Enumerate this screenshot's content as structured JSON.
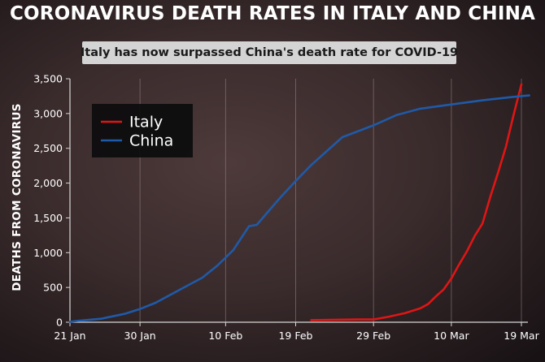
{
  "chart_data": {
    "type": "line",
    "title": "CORONAVIRUS DEATH RATES IN ITALY AND CHINA",
    "subtitle": "Italy has now surpassed China's death rate for COVID-19",
    "ylabel": "DEATHS FROM CORONAVIRUS",
    "xlabel": "",
    "ylim": [
      0,
      3500
    ],
    "yticks": [
      0,
      500,
      1000,
      1500,
      2000,
      2500,
      3000,
      3500
    ],
    "ytick_labels": [
      "0",
      "500",
      "1,000",
      "1,500",
      "2,000",
      "2,500",
      "3,000",
      "3,500"
    ],
    "xlim": [
      "2020-01-21",
      "2020-03-19"
    ],
    "xticks": [
      "2020-01-21",
      "2020-01-30",
      "2020-02-10",
      "2020-02-19",
      "2020-02-29",
      "2020-03-10",
      "2020-03-19"
    ],
    "xtick_labels": [
      "21 Jan",
      "30 Jan",
      "10 Feb",
      "19 Feb",
      "29 Feb",
      "10 Mar",
      "19 Mar"
    ],
    "grid": "vertical",
    "legend": "top-left",
    "series": [
      {
        "name": "Italy",
        "color": "#e01515",
        "x": [
          "2020-02-21",
          "2020-02-27",
          "2020-02-29",
          "2020-03-02",
          "2020-03-04",
          "2020-03-06",
          "2020-03-07",
          "2020-03-08",
          "2020-03-09",
          "2020-03-10",
          "2020-03-11",
          "2020-03-12",
          "2020-03-13",
          "2020-03-14",
          "2020-03-15",
          "2020-03-16",
          "2020-03-17",
          "2020-03-18",
          "2020-03-19"
        ],
        "y": [
          30,
          40,
          40,
          80,
          130,
          200,
          260,
          370,
          470,
          630,
          830,
          1020,
          1240,
          1420,
          1800,
          2150,
          2520,
          2980,
          3420
        ]
      },
      {
        "name": "China",
        "color": "#1f5aa8",
        "x": [
          "2020-01-21",
          "2020-01-22",
          "2020-01-25",
          "2020-01-28",
          "2020-01-30",
          "2020-02-01",
          "2020-02-03",
          "2020-02-05",
          "2020-02-07",
          "2020-02-09",
          "2020-02-11",
          "2020-02-13",
          "2020-02-14",
          "2020-02-15",
          "2020-02-17",
          "2020-02-19",
          "2020-02-21",
          "2020-02-23",
          "2020-02-25",
          "2020-02-29",
          "2020-03-03",
          "2020-03-06",
          "2020-03-10",
          "2020-03-14",
          "2020-03-18",
          "2020-03-20"
        ],
        "y": [
          6,
          20,
          50,
          120,
          190,
          280,
          400,
          520,
          640,
          820,
          1040,
          1380,
          1400,
          1530,
          1790,
          2030,
          2260,
          2460,
          2660,
          2830,
          2980,
          3070,
          3130,
          3190,
          3240,
          3260
        ]
      }
    ]
  }
}
